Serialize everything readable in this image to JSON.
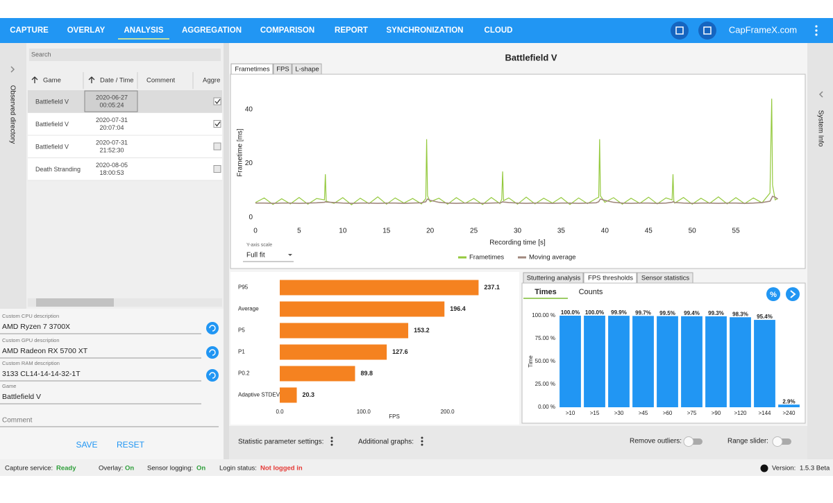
{
  "nav": {
    "tabs": [
      "CAPTURE",
      "OVERLAY",
      "ANALYSIS",
      "AGGREGATION",
      "COMPARISON",
      "REPORT",
      "SYNCHRONIZATION",
      "CLOUD"
    ],
    "active": "ANALYSIS",
    "site": "CapFrameX.com"
  },
  "sidebar": {
    "left": "Observed directory",
    "right": "System Info"
  },
  "search": "Search",
  "table": {
    "headers": [
      "Game",
      "Date / Time",
      "Comment",
      "Aggre"
    ],
    "rows": [
      {
        "game": "Battlefield V",
        "date": "2020-06-27",
        "time": "00:05:24",
        "checked": true
      },
      {
        "game": "Battlefield V",
        "date": "2020-07-31",
        "time": "20:07:04",
        "checked": true
      },
      {
        "game": "Battlefield V",
        "date": "2020-07-31",
        "time": "21:52:30",
        "checked": false
      },
      {
        "game": "Death Stranding",
        "date": "2020-08-05",
        "time": "18:00:53",
        "checked": false
      }
    ]
  },
  "fields": [
    {
      "label": "Custom CPU description",
      "value": "AMD Ryzen 7 3700X"
    },
    {
      "label": "Custom GPU description",
      "value": "AMD Radeon RX 5700 XT"
    },
    {
      "label": "Custom RAM description",
      "value": "3133 CL14-14-14-32-1T"
    },
    {
      "label": "Game",
      "value": "Battlefield V"
    }
  ],
  "comment": "Comment",
  "buttons": [
    "SAVE",
    "RESET"
  ],
  "main": {
    "title": "Battlefield V",
    "tabs": [
      "Frametimes",
      "FPS",
      "L-shape"
    ],
    "yscale_label": "Y-axis scale",
    "yscale_value": "Full fit",
    "stat_tabs": [
      "Stuttering analysis",
      "FPS thresholds",
      "Sensor statistics"
    ],
    "sub_tabs": [
      "Times",
      "Counts"
    ],
    "icon_percent": "%"
  },
  "bottom": {
    "items": [
      "Statistic parameter settings:",
      "Additional graphs:"
    ],
    "toggles": [
      "Remove outliers:",
      "Range slider:"
    ]
  },
  "status": {
    "items": [
      {
        "label": "Capture service:",
        "value": "Ready"
      },
      {
        "label": "Overlay:",
        "value": "On"
      },
      {
        "label": "Sensor logging:",
        "value": "On"
      },
      {
        "label": "Login status:",
        "value": "Not logged in"
      }
    ],
    "version_label": "Version:",
    "version": "1.5.3 Beta"
  },
  "chart_data": [
    {
      "type": "line",
      "xlabel": "Recording time [s]",
      "ylabel": "Frametime [ms]",
      "xlim": [
        0,
        60
      ],
      "ylim": [
        -3,
        51
      ],
      "xticks": [
        0,
        5,
        10,
        15,
        20,
        25,
        30,
        35,
        40,
        45,
        50,
        55
      ],
      "yticks": [
        0,
        20,
        40
      ],
      "grid": false,
      "legend": "bottom",
      "x": [
        0,
        1,
        2,
        3,
        4,
        5,
        6,
        7,
        7.9,
        8,
        8.1,
        9,
        10,
        11,
        12,
        13,
        14,
        15,
        16,
        17,
        18,
        19,
        19.5,
        19.6,
        19.7,
        20,
        21,
        22,
        23,
        24,
        25,
        26,
        27,
        28,
        28.2,
        28.3,
        28.4,
        29,
        30,
        31,
        32,
        33,
        34,
        35,
        36,
        37,
        38,
        39,
        39.3,
        39.4,
        39.5,
        40,
        41,
        42,
        43,
        44,
        45,
        46,
        47,
        47.7,
        47.8,
        47.9,
        48,
        49,
        50,
        51,
        52,
        53,
        54,
        55,
        56,
        57,
        58,
        58.9,
        59,
        59.1,
        59.2,
        59.5,
        59.8
      ],
      "series": [
        {
          "name": "Frametimes",
          "color": "#94c93d",
          "values": [
            5.5,
            7.2,
            4.8,
            6.9,
            5.0,
            7.4,
            4.9,
            7.0,
            6.5,
            16,
            6.0,
            5.2,
            7.3,
            4.7,
            7.1,
            5.1,
            7.6,
            4.9,
            7.2,
            5.3,
            7.0,
            5.0,
            7,
            29,
            8,
            5.8,
            7.1,
            4.9,
            7.3,
            5.2,
            7.0,
            4.8,
            7.4,
            5.1,
            6.8,
            17,
            6.2,
            7.2,
            4.9,
            7.5,
            5.0,
            7.1,
            5.3,
            7.4,
            4.8,
            7.2,
            5.1,
            7.0,
            7.5,
            29,
            8,
            5.6,
            7.3,
            4.9,
            7.1,
            5.2,
            7.5,
            5.0,
            7.2,
            6.5,
            16,
            6.0,
            5.3,
            7.4,
            4.9,
            7.1,
            5.2,
            7.6,
            5.0,
            7.3,
            5.1,
            7.2,
            5.4,
            9,
            26,
            44,
            12,
            6.5,
            7
          ]
        },
        {
          "name": "Moving average",
          "color": "#a0887e",
          "values": [
            5.3,
            5.3,
            5.2,
            5.3,
            5.3,
            5.2,
            5.3,
            5.4,
            5.6,
            5.8,
            5.7,
            5.5,
            5.3,
            5.2,
            5.3,
            5.3,
            5.2,
            5.3,
            5.3,
            5.2,
            5.3,
            5.4,
            5.8,
            6.4,
            6.8,
            6.3,
            5.6,
            5.3,
            5.2,
            5.3,
            5.3,
            5.2,
            5.3,
            5.4,
            5.6,
            5.8,
            5.7,
            5.5,
            5.3,
            5.2,
            5.3,
            5.3,
            5.2,
            5.3,
            5.3,
            5.2,
            5.3,
            5.4,
            5.8,
            6.4,
            6.8,
            6.3,
            5.6,
            5.3,
            5.2,
            5.3,
            5.3,
            5.2,
            5.3,
            5.6,
            5.8,
            5.7,
            5.5,
            5.3,
            5.2,
            5.3,
            5.3,
            5.2,
            5.3,
            5.3,
            5.2,
            5.3,
            5.5,
            6.0,
            6.5,
            7.2,
            7.8,
            7.5,
            6.8
          ]
        }
      ]
    },
    {
      "type": "bar",
      "orientation": "horizontal",
      "categories": [
        "P95",
        "Average",
        "P5",
        "P1",
        "P0.2",
        "Adaptive STDEV"
      ],
      "values": [
        237.1,
        196.4,
        153.2,
        127.6,
        89.8,
        20.3
      ],
      "color": "#f58220",
      "xlim": [
        0,
        250
      ],
      "xticks": [
        {
          "value": 0,
          "label": "0.0"
        },
        {
          "value": 100,
          "label": "100.0"
        },
        {
          "value": 200,
          "label": "200.0"
        }
      ],
      "xlabel": "FPS"
    },
    {
      "type": "bar",
      "categories": [
        ">10",
        ">15",
        ">30",
        ">45",
        ">60",
        ">75",
        ">90",
        ">120",
        ">144",
        ">240"
      ],
      "values": [
        100,
        100,
        99.9,
        99.7,
        99.5,
        99.4,
        99.3,
        98.3,
        95.4,
        2.9
      ],
      "value_labels": [
        "100.0%",
        "100.0%",
        "99.9%",
        "99.7%",
        "99.5%",
        "99.4%",
        "99.3%",
        "98.3%",
        "95.4%",
        "2.9%"
      ],
      "color": "#2196f3",
      "ylim": [
        0,
        100
      ],
      "yticks": [
        {
          "value": 0,
          "label": "0.00 %"
        },
        {
          "value": 25,
          "label": "25.00 %"
        },
        {
          "value": 50,
          "label": "50.00 %"
        },
        {
          "value": 75,
          "label": "75.00 %"
        },
        {
          "value": 100,
          "label": "100.00 %"
        }
      ],
      "ylabel": "Time"
    }
  ]
}
